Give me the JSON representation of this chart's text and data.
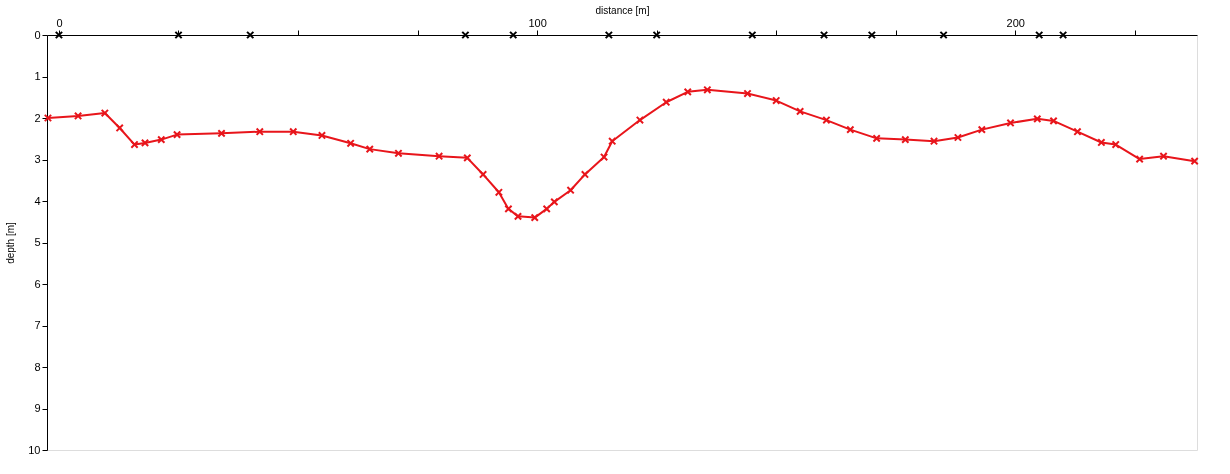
{
  "chart_data": {
    "type": "line",
    "xlabel": "distance [m]",
    "ylabel": "depth [m]",
    "xlim": [
      -2.5,
      238
    ],
    "xticks": [
      0,
      {
        "value": 25,
        "label": null
      },
      {
        "value": 50,
        "label": null
      },
      {
        "value": 75,
        "label": null
      },
      100,
      {
        "value": 125,
        "label": null
      },
      {
        "value": 150,
        "label": null
      },
      {
        "value": 175,
        "label": null
      },
      200,
      {
        "value": 225,
        "label": null
      }
    ],
    "ylim": [
      10,
      0
    ],
    "yticks": [
      0,
      1,
      2,
      3,
      4,
      5,
      6,
      7,
      8,
      9,
      10
    ],
    "grid": false,
    "marker": "cross",
    "line_style": "solid",
    "series": [
      {
        "color": "#e8151b",
        "x": [
          -2.3,
          4,
          9.6,
          12.7,
          15.8,
          18,
          21.4,
          24.7,
          34,
          42,
          49,
          55,
          61,
          65,
          71,
          79.5,
          85.4,
          88.7,
          92,
          94,
          96,
          99.5,
          102,
          103.6,
          107,
          110,
          114,
          115.7,
          121.5,
          127,
          131.5,
          135.6,
          144,
          150,
          155,
          160.5,
          165.5,
          171,
          177,
          183,
          188,
          193,
          199,
          204.6,
          208,
          213,
          218,
          221,
          226,
          231,
          237.5
        ],
        "values": [
          2.0,
          1.95,
          1.88,
          2.24,
          2.64,
          2.6,
          2.52,
          2.4,
          2.37,
          2.33,
          2.33,
          2.42,
          2.61,
          2.75,
          2.85,
          2.92,
          2.96,
          3.36,
          3.79,
          4.19,
          4.37,
          4.4,
          4.19,
          4.02,
          3.74,
          3.36,
          2.94,
          2.56,
          2.05,
          1.62,
          1.37,
          1.32,
          1.41,
          1.58,
          1.84,
          2.05,
          2.28,
          2.49,
          2.52,
          2.56,
          2.47,
          2.28,
          2.12,
          2.02,
          2.07,
          2.33,
          2.59,
          2.64,
          2.99,
          2.92,
          3.04
        ]
      },
      {
        "type": "scatter",
        "color": "#000000",
        "x": [
          0,
          25,
          40,
          85,
          95,
          115,
          125,
          145,
          160,
          170,
          185,
          205,
          210
        ],
        "values": [
          0,
          0,
          0,
          0,
          0,
          0,
          0,
          0,
          0,
          0,
          0,
          0,
          0
        ]
      }
    ]
  }
}
